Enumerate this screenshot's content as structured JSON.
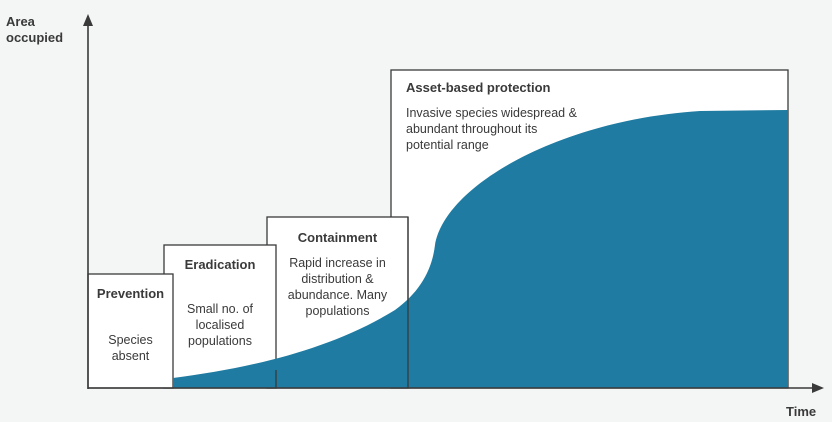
{
  "axes": {
    "y_label_line1": "Area",
    "y_label_line2": "occupied",
    "x_label": "Time"
  },
  "stages": [
    {
      "id": "prevention",
      "title": "Prevention",
      "description": [
        "Species",
        "absent"
      ]
    },
    {
      "id": "eradication",
      "title": "Eradication",
      "description": [
        "Small no. of",
        "localised",
        "populations"
      ]
    },
    {
      "id": "containment",
      "title": "Containment",
      "description": [
        "Rapid increase in",
        "distribution &",
        "abundance. Many",
        "populations"
      ]
    },
    {
      "id": "asset-based-protection",
      "title": "Asset-based protection",
      "description": [
        "Invasive species widespread &",
        "abundant throughout its",
        "potential range"
      ]
    }
  ],
  "colors": {
    "background": "#f4f5f5",
    "curve_fill": "#1f7ba1",
    "box_stroke": "#3a3a3a",
    "box_fill": "#ffffff",
    "text": "#3a3a3a"
  }
}
